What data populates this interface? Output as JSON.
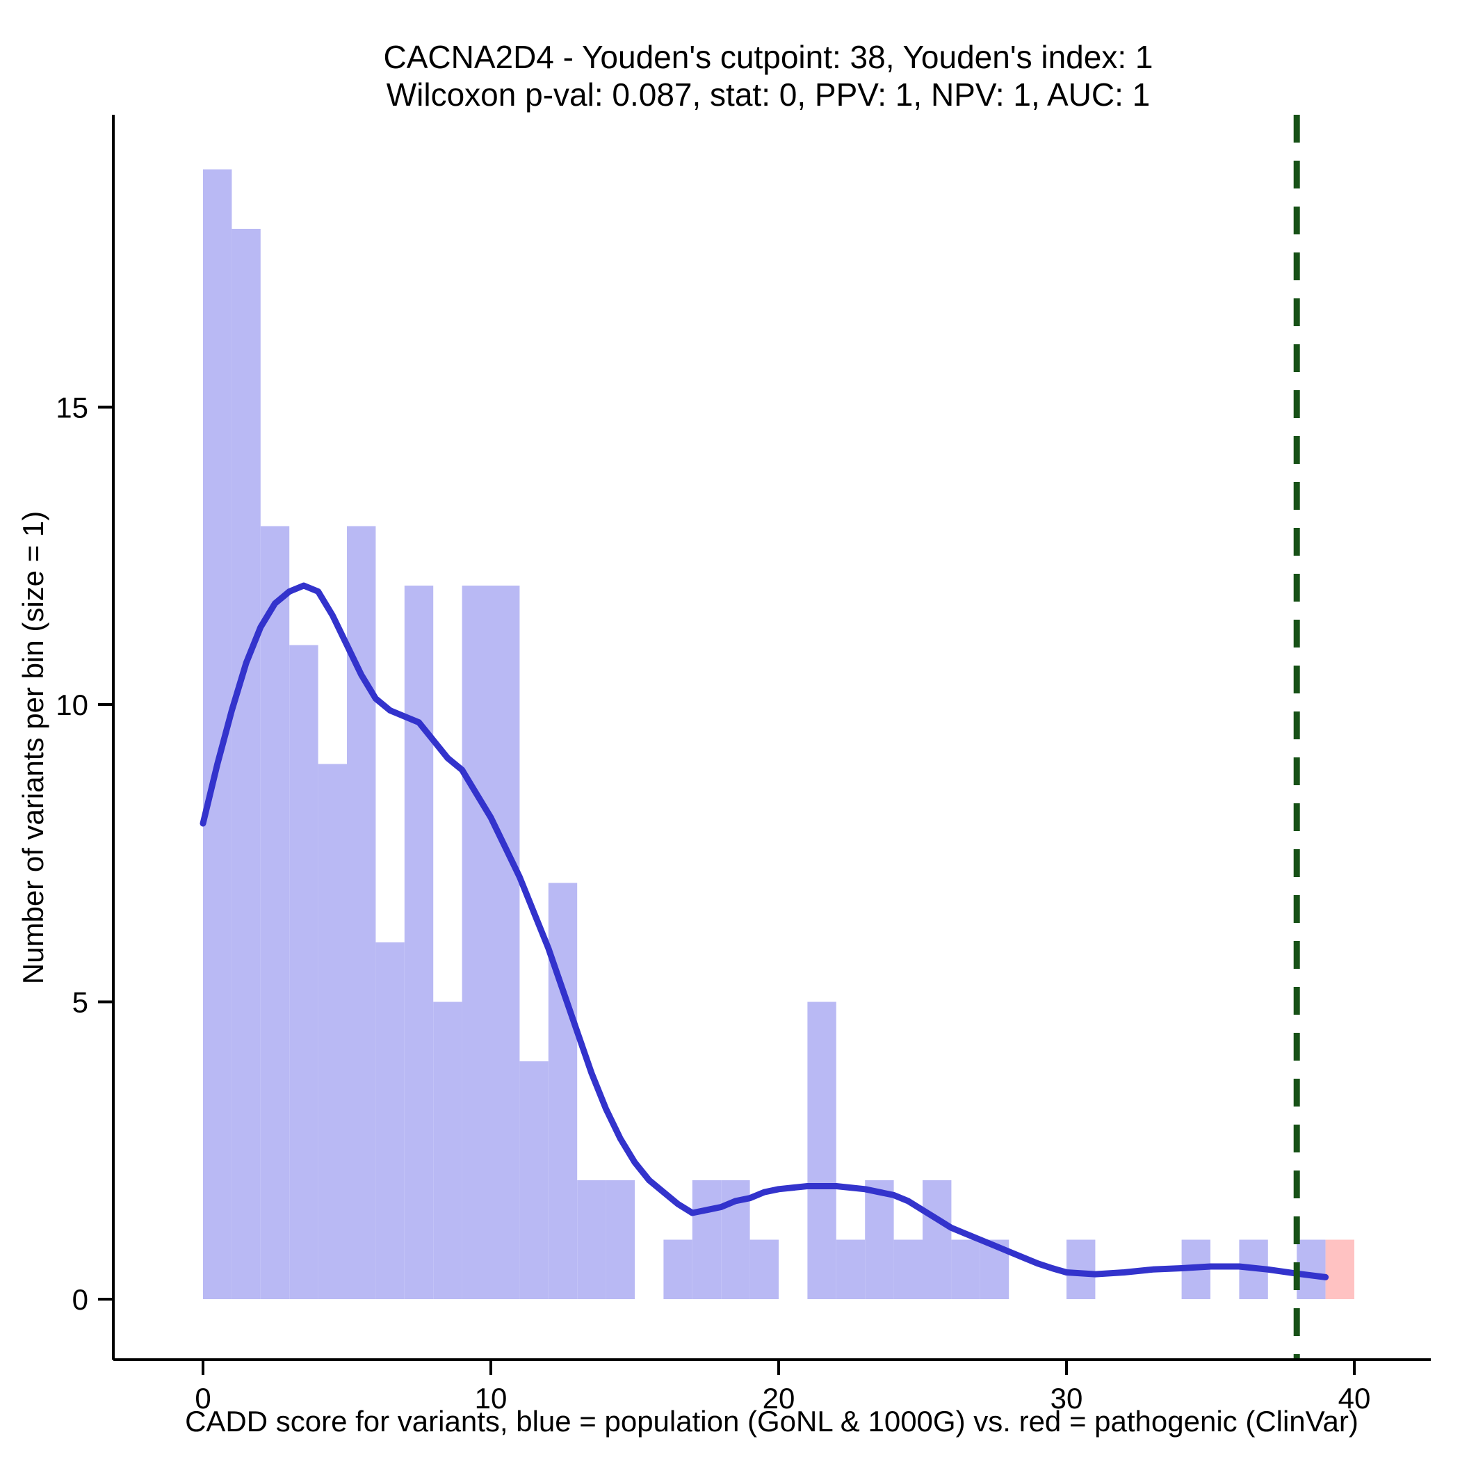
{
  "chart_data": {
    "type": "histogram",
    "title": "CACNA2D4 - Youden's cutpoint: 38, Youden's index: 1",
    "subtitle": "Wilcoxon p-val: 0.087, stat: 0, PPV: 1, NPV: 1, AUC: 1",
    "xlabel": "CADD score for variants, blue = population (GoNL & 1000G) vs. red = pathogenic (ClinVar)",
    "ylabel": "Number of variants per bin (size = 1)",
    "bin_size": 1,
    "xlim": [
      0,
      40
    ],
    "ylim": [
      0,
      19.9
    ],
    "x_ticks": [
      0,
      10,
      20,
      30,
      40
    ],
    "y_ticks": [
      0,
      5,
      10,
      15
    ],
    "grid": false,
    "series": [
      {
        "name": "population (GoNL & 1000G)",
        "color": "#b9b9f4",
        "bins": [
          [
            0,
            19
          ],
          [
            1,
            18
          ],
          [
            2,
            13
          ],
          [
            3,
            11
          ],
          [
            4,
            9
          ],
          [
            5,
            13
          ],
          [
            6,
            6
          ],
          [
            7,
            12
          ],
          [
            8,
            5
          ],
          [
            9,
            12
          ],
          [
            10,
            12
          ],
          [
            11,
            4
          ],
          [
            12,
            7
          ],
          [
            13,
            2
          ],
          [
            14,
            2
          ],
          [
            16,
            1
          ],
          [
            17,
            2
          ],
          [
            18,
            2
          ],
          [
            19,
            1
          ],
          [
            21,
            5
          ],
          [
            22,
            1
          ],
          [
            23,
            2
          ],
          [
            24,
            1
          ],
          [
            25,
            2
          ],
          [
            26,
            1
          ],
          [
            27,
            1
          ],
          [
            30,
            1
          ],
          [
            34,
            1
          ],
          [
            36,
            1
          ],
          [
            38,
            1
          ]
        ]
      },
      {
        "name": "pathogenic (ClinVar)",
        "color": "#ffc2c2",
        "bins": [
          [
            39,
            1
          ]
        ]
      }
    ],
    "density_line": {
      "name": "population density curve",
      "color": "#3333cc",
      "points": [
        [
          0,
          8
        ],
        [
          0.5,
          9
        ],
        [
          1,
          9.9
        ],
        [
          1.5,
          10.7
        ],
        [
          2,
          11.3
        ],
        [
          2.5,
          11.7
        ],
        [
          3,
          11.9
        ],
        [
          3.5,
          12
        ],
        [
          4,
          11.9
        ],
        [
          4.5,
          11.5
        ],
        [
          5,
          11
        ],
        [
          5.5,
          10.5
        ],
        [
          6,
          10.1
        ],
        [
          6.5,
          9.9
        ],
        [
          7,
          9.8
        ],
        [
          7.5,
          9.7
        ],
        [
          8,
          9.4
        ],
        [
          8.5,
          9.1
        ],
        [
          9,
          8.9
        ],
        [
          9.5,
          8.5
        ],
        [
          10,
          8.1
        ],
        [
          10.5,
          7.6
        ],
        [
          11,
          7.1
        ],
        [
          11.5,
          6.5
        ],
        [
          12,
          5.9
        ],
        [
          12.5,
          5.2
        ],
        [
          13,
          4.5
        ],
        [
          13.5,
          3.8
        ],
        [
          14,
          3.2
        ],
        [
          14.5,
          2.7
        ],
        [
          15,
          2.3
        ],
        [
          15.5,
          2
        ],
        [
          16,
          1.8
        ],
        [
          16.5,
          1.6
        ],
        [
          17,
          1.45
        ],
        [
          17.5,
          1.5
        ],
        [
          18,
          1.55
        ],
        [
          18.5,
          1.65
        ],
        [
          19,
          1.7
        ],
        [
          19.5,
          1.8
        ],
        [
          20,
          1.85
        ],
        [
          21,
          1.9
        ],
        [
          22,
          1.9
        ],
        [
          23,
          1.85
        ],
        [
          24,
          1.75
        ],
        [
          24.5,
          1.65
        ],
        [
          25,
          1.5
        ],
        [
          25.5,
          1.35
        ],
        [
          26,
          1.2
        ],
        [
          26.5,
          1.1
        ],
        [
          27,
          1
        ],
        [
          27.5,
          0.9
        ],
        [
          28,
          0.8
        ],
        [
          28.5,
          0.7
        ],
        [
          29,
          0.6
        ],
        [
          29.5,
          0.52
        ],
        [
          30,
          0.45
        ],
        [
          31,
          0.42
        ],
        [
          32,
          0.45
        ],
        [
          33,
          0.5
        ],
        [
          34,
          0.52
        ],
        [
          35,
          0.55
        ],
        [
          36,
          0.55
        ],
        [
          37,
          0.5
        ],
        [
          38,
          0.43
        ],
        [
          39,
          0.37
        ]
      ]
    },
    "cutpoint_line": {
      "x": 38,
      "style": "dashed",
      "color": "#175117"
    },
    "axis_color": "#000000"
  }
}
